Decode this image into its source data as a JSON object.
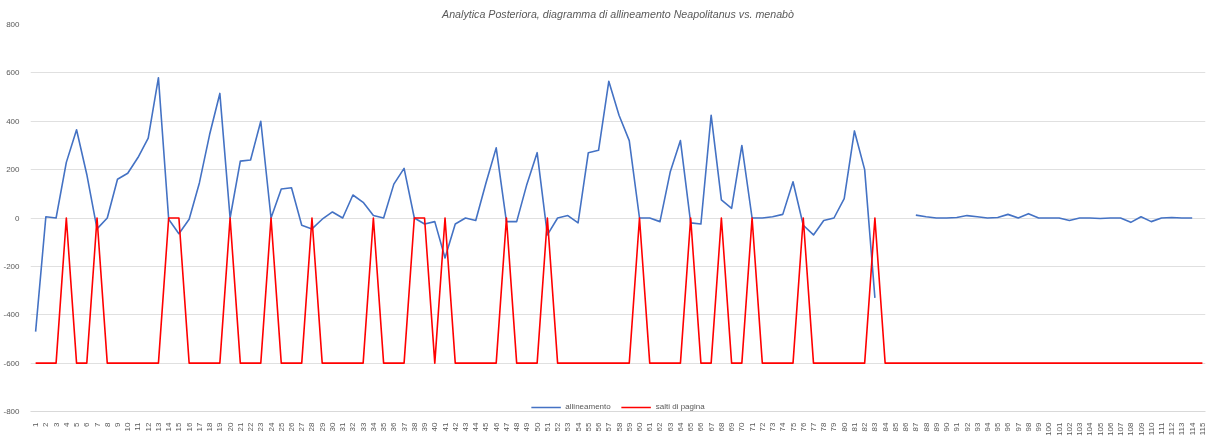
{
  "chart_data": {
    "type": "line",
    "title": "Analytica Posteriora, diagramma di allineamento Neapolitanus vs. menabò",
    "categories": [
      "1",
      "2",
      "3",
      "4",
      "5",
      "6",
      "7",
      "8",
      "9",
      "10",
      "11",
      "12",
      "13",
      "14",
      "15",
      "16",
      "17",
      "18",
      "19",
      "20",
      "21",
      "22",
      "23",
      "24",
      "25",
      "26",
      "27",
      "28",
      "29",
      "30",
      "31",
      "32",
      "33",
      "34",
      "35",
      "36",
      "37",
      "38",
      "39",
      "40",
      "41",
      "42",
      "43",
      "44",
      "45",
      "46",
      "47",
      "48",
      "49",
      "50",
      "51",
      "52",
      "53",
      "54",
      "55",
      "56",
      "57",
      "58",
      "59",
      "60",
      "61",
      "62",
      "63",
      "64",
      "65",
      "66",
      "67",
      "68",
      "69",
      "70",
      "71",
      "72",
      "73",
      "74",
      "75",
      "76",
      "77",
      "78",
      "79",
      "80",
      "81",
      "82",
      "83",
      "84",
      "85",
      "86",
      "87",
      "88",
      "89",
      "90",
      "91",
      "92",
      "93",
      "94",
      "95",
      "96",
      "97",
      "98",
      "99",
      "100",
      "101",
      "102",
      "103",
      "104",
      "105",
      "106",
      "107",
      "108",
      "109",
      "110",
      "111",
      "112",
      "113",
      "114",
      "115"
    ],
    "series": [
      {
        "name": "allineamento",
        "color": "#4472c4",
        "values": [
          -470,
          5,
          0,
          230,
          365,
          180,
          -45,
          0,
          160,
          185,
          250,
          330,
          580,
          -5,
          -65,
          -5,
          145,
          345,
          515,
          0,
          235,
          240,
          400,
          0,
          120,
          125,
          -30,
          -45,
          -5,
          25,
          0,
          95,
          65,
          10,
          0,
          140,
          205,
          0,
          -25,
          -15,
          -165,
          -25,
          0,
          -10,
          145,
          290,
          -15,
          -15,
          140,
          270,
          -70,
          0,
          10,
          -20,
          270,
          280,
          565,
          425,
          320,
          0,
          0,
          -15,
          190,
          320,
          -20,
          -25,
          425,
          75,
          40,
          300,
          0,
          0,
          5,
          15,
          150,
          -30,
          -70,
          -10,
          0,
          80,
          360,
          200,
          -330,
          null,
          null,
          null,
          12,
          5,
          0,
          0,
          2,
          10,
          5,
          0,
          2,
          15,
          0,
          18,
          0,
          0,
          0,
          -10,
          0,
          0,
          -2,
          0,
          0,
          -18,
          5,
          -15,
          0,
          2,
          0,
          0,
          null
        ]
      },
      {
        "name": "salti di pagina",
        "color": "#ff0000",
        "values": [
          -600,
          -600,
          -600,
          0,
          -600,
          -600,
          0,
          -600,
          -600,
          -600,
          -600,
          -600,
          -600,
          0,
          0,
          -600,
          -600,
          -600,
          -600,
          0,
          -600,
          -600,
          -600,
          0,
          -600,
          -600,
          -600,
          0,
          -600,
          -600,
          -600,
          -600,
          -600,
          0,
          -600,
          -600,
          -600,
          0,
          0,
          -600,
          0,
          -600,
          -600,
          -600,
          -600,
          -600,
          0,
          -600,
          -600,
          -600,
          0,
          -600,
          -600,
          -600,
          -600,
          -600,
          -600,
          -600,
          -600,
          0,
          -600,
          -600,
          -600,
          -600,
          0,
          -600,
          -600,
          0,
          -600,
          -600,
          0,
          -600,
          -600,
          -600,
          -600,
          0,
          -600,
          -600,
          -600,
          -600,
          -600,
          -600,
          0,
          -600,
          -600,
          -600,
          -600,
          -600,
          -600,
          -600,
          -600,
          -600,
          -600,
          -600,
          -600,
          -600,
          -600,
          -600,
          -600,
          -600,
          -600,
          -600,
          -600,
          -600,
          -600,
          -600,
          -600,
          -600,
          -600,
          -600,
          -600,
          -600,
          -600,
          -600,
          -600
        ]
      }
    ],
    "ylim": [
      -800,
      800
    ],
    "yticks": [
      -800,
      -600,
      -400,
      -200,
      0,
      200,
      400,
      600,
      800
    ],
    "grid": "y",
    "legend": "bottom",
    "marker": "none",
    "line_style": "solid"
  }
}
